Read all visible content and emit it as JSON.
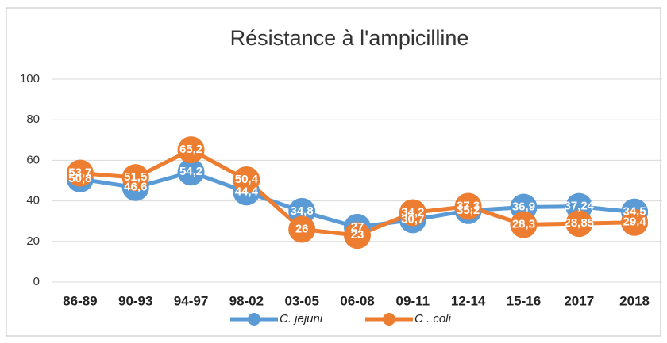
{
  "chart_data": {
    "type": "line",
    "title": "Résistance à l'ampicilline",
    "categories": [
      "86-89",
      "90-93",
      "94-97",
      "98-02",
      "03-05",
      "06-08",
      "09-11",
      "12-14",
      "15-16",
      "2017",
      "2018"
    ],
    "series": [
      {
        "name": "C. jejuni",
        "color": "#5b9bd5",
        "values": [
          50.8,
          46.6,
          54.2,
          44.4,
          34.8,
          27,
          30.7,
          35.2,
          36.9,
          37.24,
          34.5
        ],
        "value_labels": [
          "50,8",
          "46,6",
          "54,2",
          "44,4",
          "34,8",
          "27",
          "30,7",
          "35,2",
          "36,9",
          "37,24",
          "34,5"
        ]
      },
      {
        "name": "C . coli",
        "color": "#ed7d31",
        "values": [
          53.7,
          51.5,
          65.2,
          50.4,
          26,
          23,
          34.2,
          37.3,
          28.3,
          28.85,
          29.4
        ],
        "value_labels": [
          "53,7",
          "51,5",
          "65,2",
          "50,4",
          "26",
          "23",
          "34,2",
          "37,3",
          "28,3",
          "28,85",
          "29,4"
        ]
      }
    ],
    "ylim": [
      0,
      100
    ],
    "yticks": [
      0,
      20,
      40,
      60,
      80,
      100
    ],
    "grid": true
  }
}
